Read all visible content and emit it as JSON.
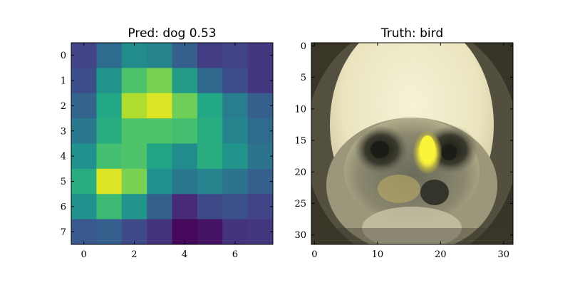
{
  "chart_data": [
    {
      "type": "heatmap",
      "title": "Pred: dog 0.53",
      "colormap": "viridis",
      "xlim": [
        -0.5,
        7.5
      ],
      "ylim": [
        7.5,
        -0.5
      ],
      "x_ticks": [
        0,
        2,
        4,
        6
      ],
      "y_ticks": [
        0,
        1,
        2,
        3,
        4,
        5,
        6,
        7
      ],
      "grid": false,
      "values": [
        [
          0.2,
          0.35,
          0.48,
          0.45,
          0.3,
          0.18,
          0.2,
          0.16
        ],
        [
          0.24,
          0.52,
          0.72,
          0.8,
          0.55,
          0.34,
          0.24,
          0.16
        ],
        [
          0.32,
          0.6,
          0.88,
          0.95,
          0.78,
          0.6,
          0.42,
          0.3
        ],
        [
          0.4,
          0.62,
          0.72,
          0.72,
          0.7,
          0.62,
          0.45,
          0.35
        ],
        [
          0.5,
          0.7,
          0.72,
          0.58,
          0.48,
          0.62,
          0.52,
          0.38
        ],
        [
          0.62,
          0.95,
          0.8,
          0.5,
          0.4,
          0.45,
          0.38,
          0.3
        ],
        [
          0.5,
          0.68,
          0.52,
          0.3,
          0.12,
          0.22,
          0.25,
          0.2
        ],
        [
          0.28,
          0.3,
          0.22,
          0.15,
          0.02,
          0.05,
          0.15,
          0.16
        ]
      ]
    },
    {
      "type": "image",
      "title": "Truth: bird",
      "image_size": [
        32,
        32
      ],
      "xlim": [
        -0.5,
        31.5
      ],
      "ylim": [
        31.5,
        -0.5
      ],
      "x_ticks": [
        0,
        10,
        20,
        30
      ],
      "y_ticks": [
        0,
        5,
        10,
        15,
        20,
        25,
        30
      ],
      "grid": false
    }
  ]
}
